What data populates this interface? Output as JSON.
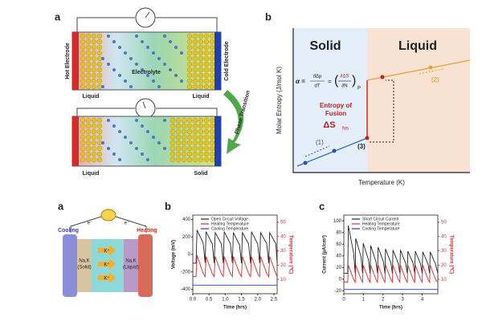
{
  "top_left": {
    "label": "a",
    "hot_electrode": "Hot Electrode",
    "cold_electrode": "Cold Electrode",
    "electrolyte": "Electrolyte",
    "liquid_left": "Liquid",
    "liquid_right": "Liquid",
    "liquid_bottom": "Liquid",
    "solid_bottom": "Solid",
    "phase_transition": "Phase Transition"
  },
  "top_right": {
    "label": "b",
    "solid": "Solid",
    "liquid": "Liquid",
    "y_label": "Molar Entropy (J/mol K)",
    "x_label": "Temperature (K)",
    "eq_alpha": "α =",
    "eq_num": "dΔμ",
    "eq_den": "dT",
    "eq_eq": "=",
    "eq_paren_num": "∂ΔS",
    "eq_paren_den": "∂N",
    "eq_sub": "P",
    "entropy_line1": "Entropy of",
    "entropy_line2": "Fusion",
    "delta_s": "ΔS",
    "delta_s_sub": "fus",
    "point1": "(1)",
    "point2": "(2)",
    "point3": "(3)"
  },
  "bottom_left": {
    "label": "a",
    "cooling": "Cooling",
    "heating": "Heating",
    "electron_left": "e⁻",
    "electron_right": "e⁻",
    "solid_name": "Na,K",
    "solid_state": "(Solid)",
    "liquid_name": "Na,K",
    "liquid_state": "(Liquid)",
    "ion1": "K⁺",
    "ion2": "K⁺",
    "ion3": "K⁺"
  },
  "chart_data": [
    {
      "type": "line",
      "panel_label": "b",
      "x_label": "Time (hrs)",
      "y_label": "Voltage (mV)",
      "y2_label": "Temperature (℃)",
      "x": [
        0,
        0.1,
        0.13,
        0.32,
        0.38,
        0.41,
        0.6,
        0.66,
        0.69,
        0.88,
        0.94,
        0.97,
        1.16,
        1.22,
        1.25,
        1.44,
        1.5,
        1.53,
        1.72,
        1.78,
        1.81,
        2.0,
        2.06,
        2.09,
        2.28,
        2.34,
        2.37,
        2.56,
        2.6
      ],
      "series": [
        {
          "name": "Open Circuit Voltage",
          "color": "#222222",
          "values": [
            -100,
            -100,
            280,
            130,
            -100,
            260,
            120,
            -100,
            250,
            120,
            -100,
            260,
            120,
            -100,
            250,
            110,
            -100,
            250,
            120,
            -100,
            260,
            120,
            -100,
            250,
            120,
            -100,
            250,
            120,
            -100
          ]
        },
        {
          "name": "Heating Temperature",
          "color": "#e02828",
          "axis": "y2",
          "values": [
            12,
            12,
            27,
            14,
            12,
            26,
            14,
            12,
            26,
            14,
            12,
            26,
            14,
            12,
            26,
            14,
            12,
            26,
            14,
            12,
            26,
            14,
            12,
            26,
            14,
            12,
            26,
            14,
            12
          ]
        },
        {
          "name": "Cooling Temperature",
          "color": "#2438d8",
          "axis": "y2",
          "values": [
            6,
            6,
            6,
            6,
            6,
            6,
            6,
            6,
            6,
            6,
            6,
            6,
            6,
            6,
            6,
            6,
            6,
            6,
            6,
            6,
            6,
            6,
            6,
            6,
            6,
            6,
            6,
            6,
            6
          ]
        }
      ],
      "xlim": [
        0,
        2.6
      ],
      "xticks": [
        {
          "value": 0,
          "label": "0.0"
        },
        0.5,
        {
          "value": 1,
          "label": "1.0"
        },
        1.5,
        {
          "value": 2,
          "label": "2.0"
        },
        2.5
      ],
      "ylim": [
        -450,
        450
      ],
      "yticks": [
        -400,
        -200,
        0,
        200,
        400
      ],
      "y2lim": [
        0,
        55
      ],
      "y2ticks": [
        10,
        20,
        30,
        40,
        50
      ]
    },
    {
      "type": "line",
      "panel_label": "c",
      "x_label": "Time (hrs)",
      "y_label": "Current (μA/cm²)",
      "y2_label": "Temperature (℃)",
      "x": [
        0,
        0.2,
        0.23,
        0.5,
        0.58,
        0.61,
        0.88,
        0.96,
        0.99,
        1.26,
        1.34,
        1.37,
        1.64,
        1.72,
        1.75,
        2.02,
        2.1,
        2.13,
        2.4,
        2.48,
        2.51,
        2.78,
        2.86,
        2.89,
        3.16,
        3.24,
        3.27,
        3.54,
        3.62,
        3.65,
        3.92,
        4.0,
        4.03,
        4.3,
        4.38,
        4.41,
        4.68,
        4.8
      ],
      "series": [
        {
          "name": "Short Circuit Current",
          "color": "#222222",
          "values": [
            10,
            10,
            92,
            45,
            10,
            70,
            38,
            10,
            62,
            33,
            10,
            58,
            30,
            10,
            55,
            30,
            10,
            52,
            28,
            10,
            50,
            27,
            10,
            50,
            27,
            10,
            48,
            27,
            10,
            48,
            26,
            10,
            47,
            26,
            10,
            47,
            26,
            10
          ]
        },
        {
          "name": "Heating Temperature",
          "color": "#e02828",
          "axis": "y2",
          "values": [
            8,
            8,
            20,
            10,
            8,
            20,
            10,
            8,
            20,
            10,
            8,
            20,
            10,
            8,
            20,
            10,
            8,
            20,
            10,
            8,
            20,
            10,
            8,
            20,
            10,
            8,
            20,
            10,
            8,
            20,
            10,
            8,
            20,
            10,
            8,
            20,
            10,
            8
          ]
        },
        {
          "name": "Cooling Temperature",
          "color": "#2438d8",
          "axis": "y2",
          "values": [
            3,
            3,
            3,
            3,
            3,
            3,
            3,
            3,
            3,
            3,
            3,
            3,
            3,
            3,
            3,
            3,
            3,
            3,
            3,
            3,
            3,
            3,
            3,
            3,
            3,
            3,
            3,
            3,
            3,
            3,
            3,
            3,
            3,
            3,
            3,
            3,
            3,
            3
          ]
        }
      ],
      "xlim": [
        0,
        4.8
      ],
      "xticks": [
        0,
        1,
        2,
        3,
        4
      ],
      "ylim": [
        -25,
        110
      ],
      "yticks": [
        -20,
        0,
        20,
        40,
        60,
        80,
        100
      ],
      "y2lim": [
        0,
        55
      ],
      "y2ticks": [
        10,
        20,
        30,
        40,
        50
      ]
    }
  ]
}
